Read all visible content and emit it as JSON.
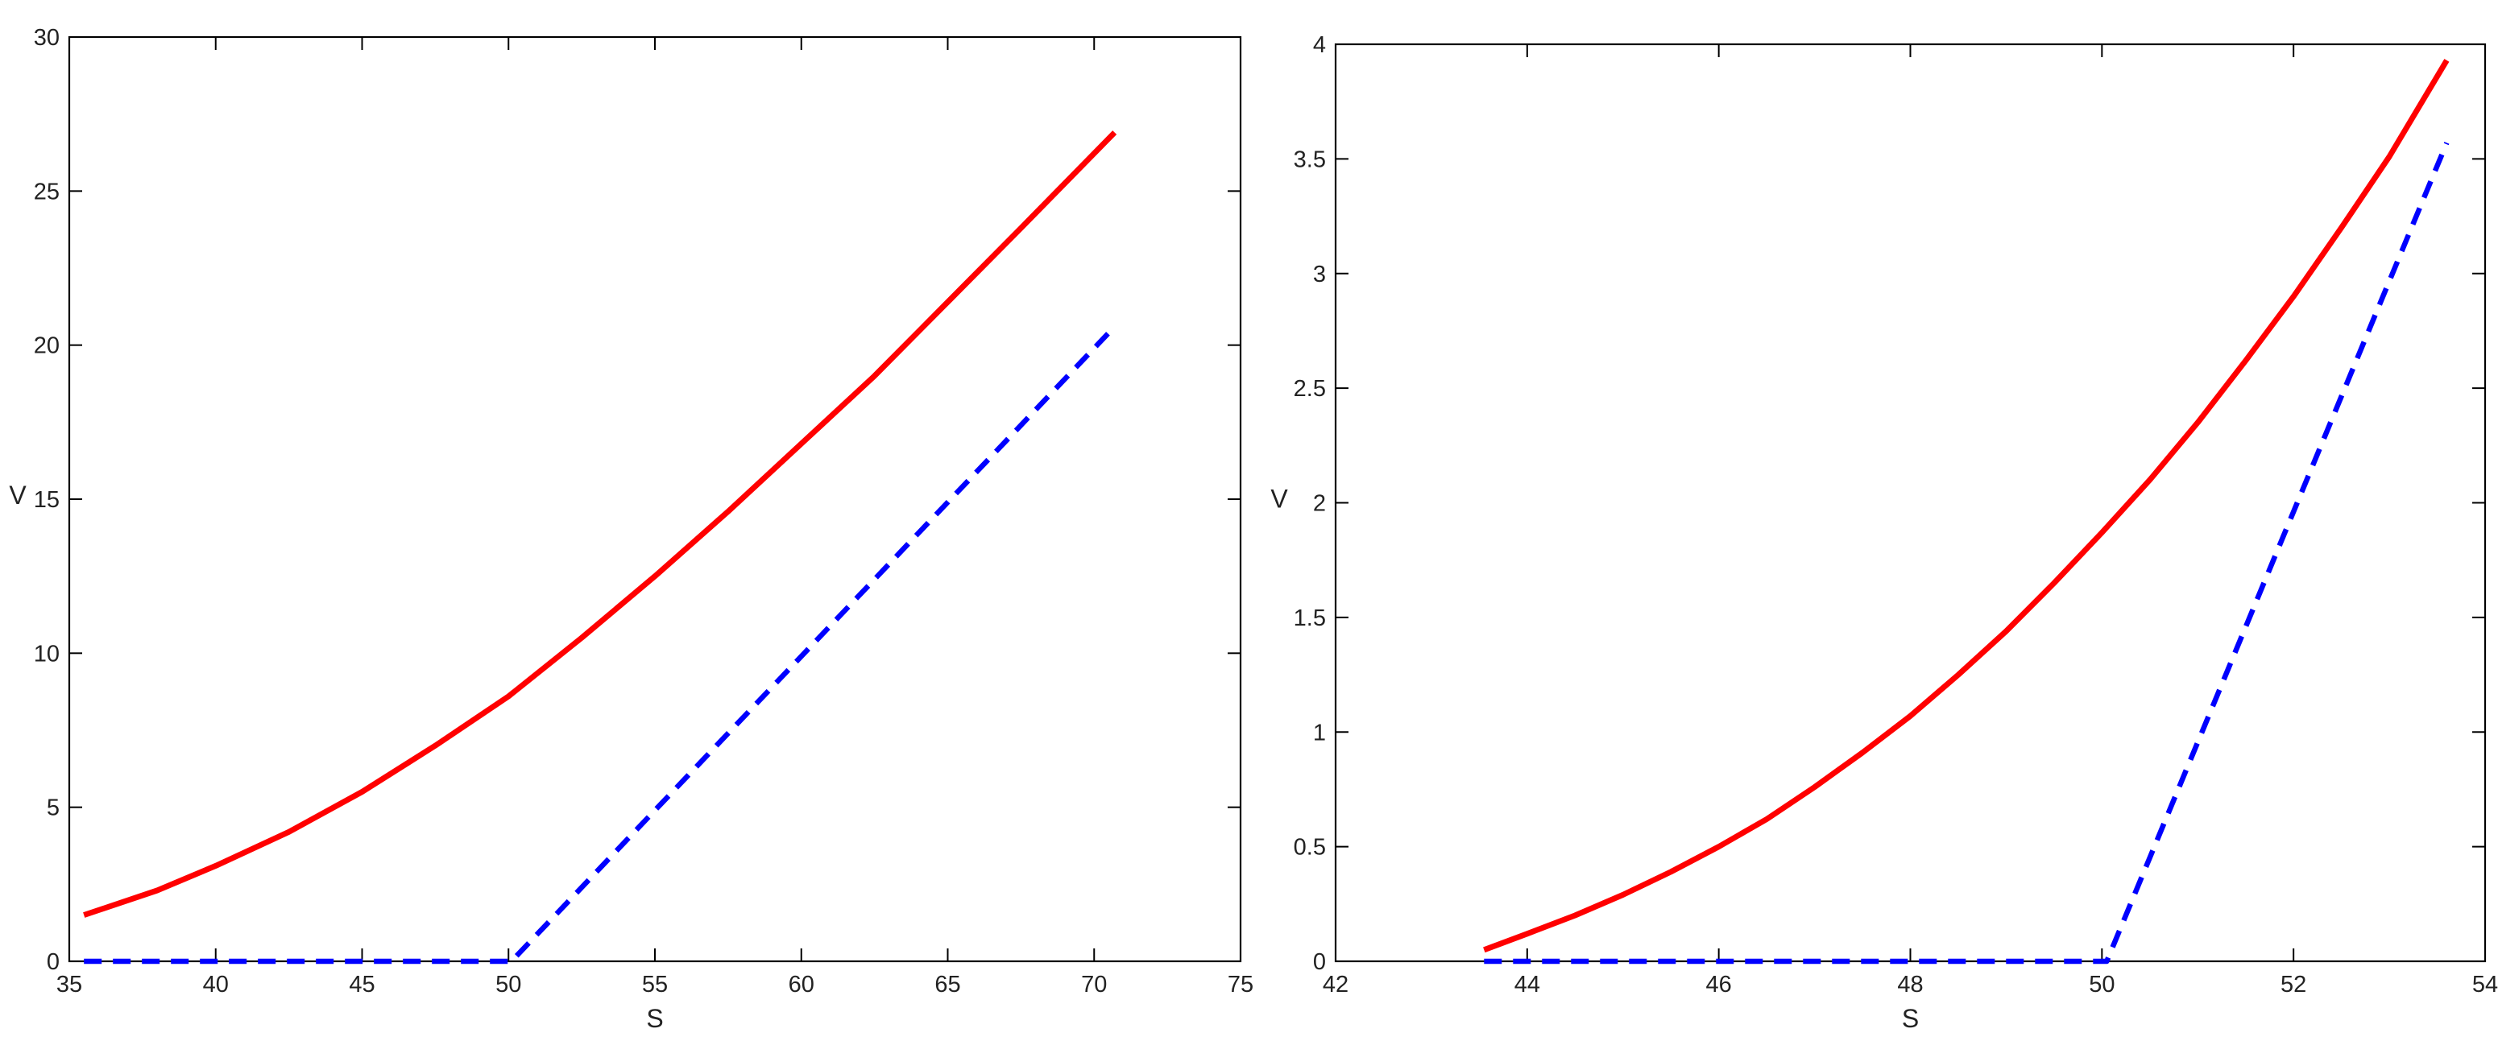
{
  "chart_data": [
    {
      "type": "line",
      "title": "",
      "xlabel": "S",
      "ylabel": "V",
      "xlim": [
        35,
        75
      ],
      "ylim": [
        0,
        30
      ],
      "xticks": [
        35,
        40,
        45,
        50,
        55,
        60,
        65,
        70,
        75
      ],
      "yticks": [
        0,
        5,
        10,
        15,
        20,
        25,
        30
      ],
      "grid": false,
      "legend": "none",
      "series": [
        {
          "color": "#ff0000",
          "style": "solid",
          "x": [
            35.5,
            38,
            40,
            42.5,
            45,
            47.5,
            50,
            52.5,
            55,
            57.5,
            60,
            62.5,
            65,
            67.5,
            70.7
          ],
          "y": [
            1.5,
            2.3,
            3.1,
            4.2,
            5.5,
            7.0,
            8.6,
            10.5,
            12.5,
            14.6,
            16.8,
            19.0,
            21.4,
            23.8,
            26.9
          ]
        },
        {
          "color": "#0000ff",
          "style": "dashed",
          "x": [
            35.5,
            50.1,
            70.7
          ],
          "y": [
            0,
            0,
            20.6
          ]
        }
      ]
    },
    {
      "type": "line",
      "title": "",
      "xlabel": "S",
      "ylabel": "V",
      "xlim": [
        42,
        54
      ],
      "ylim": [
        0,
        4
      ],
      "xticks": [
        42,
        44,
        46,
        48,
        50,
        52,
        54
      ],
      "yticks": [
        0,
        0.5,
        1,
        1.5,
        2,
        2.5,
        3,
        3.5,
        4
      ],
      "grid": false,
      "legend": "none",
      "series": [
        {
          "color": "#ff0000",
          "style": "solid",
          "x": [
            43.55,
            44,
            44.5,
            45,
            45.5,
            46,
            46.5,
            47,
            47.5,
            48,
            48.5,
            49,
            49.5,
            50,
            50.5,
            51,
            51.5,
            52,
            52.5,
            53,
            53.6
          ],
          "y": [
            0.05,
            0.12,
            0.2,
            0.29,
            0.39,
            0.5,
            0.62,
            0.76,
            0.91,
            1.07,
            1.25,
            1.44,
            1.65,
            1.87,
            2.1,
            2.35,
            2.62,
            2.9,
            3.2,
            3.51,
            3.93
          ]
        },
        {
          "color": "#0000ff",
          "style": "dashed",
          "x": [
            43.55,
            50.05,
            53.6
          ],
          "y": [
            0,
            0,
            3.57
          ]
        }
      ]
    }
  ]
}
